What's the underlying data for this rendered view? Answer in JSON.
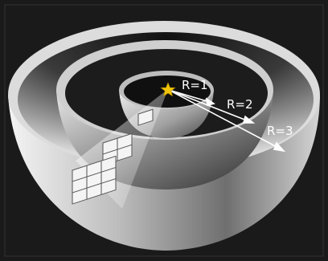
{
  "labels": {
    "r1": "R=1",
    "r2": "R=2",
    "r3": "R=3"
  },
  "colors": {
    "background": "#1a1a1a",
    "star": "#f2c40c",
    "shell_light": "#e6e6e6",
    "shell_dark": "#2a2a2a"
  },
  "icons": {
    "source": "star-icon"
  }
}
